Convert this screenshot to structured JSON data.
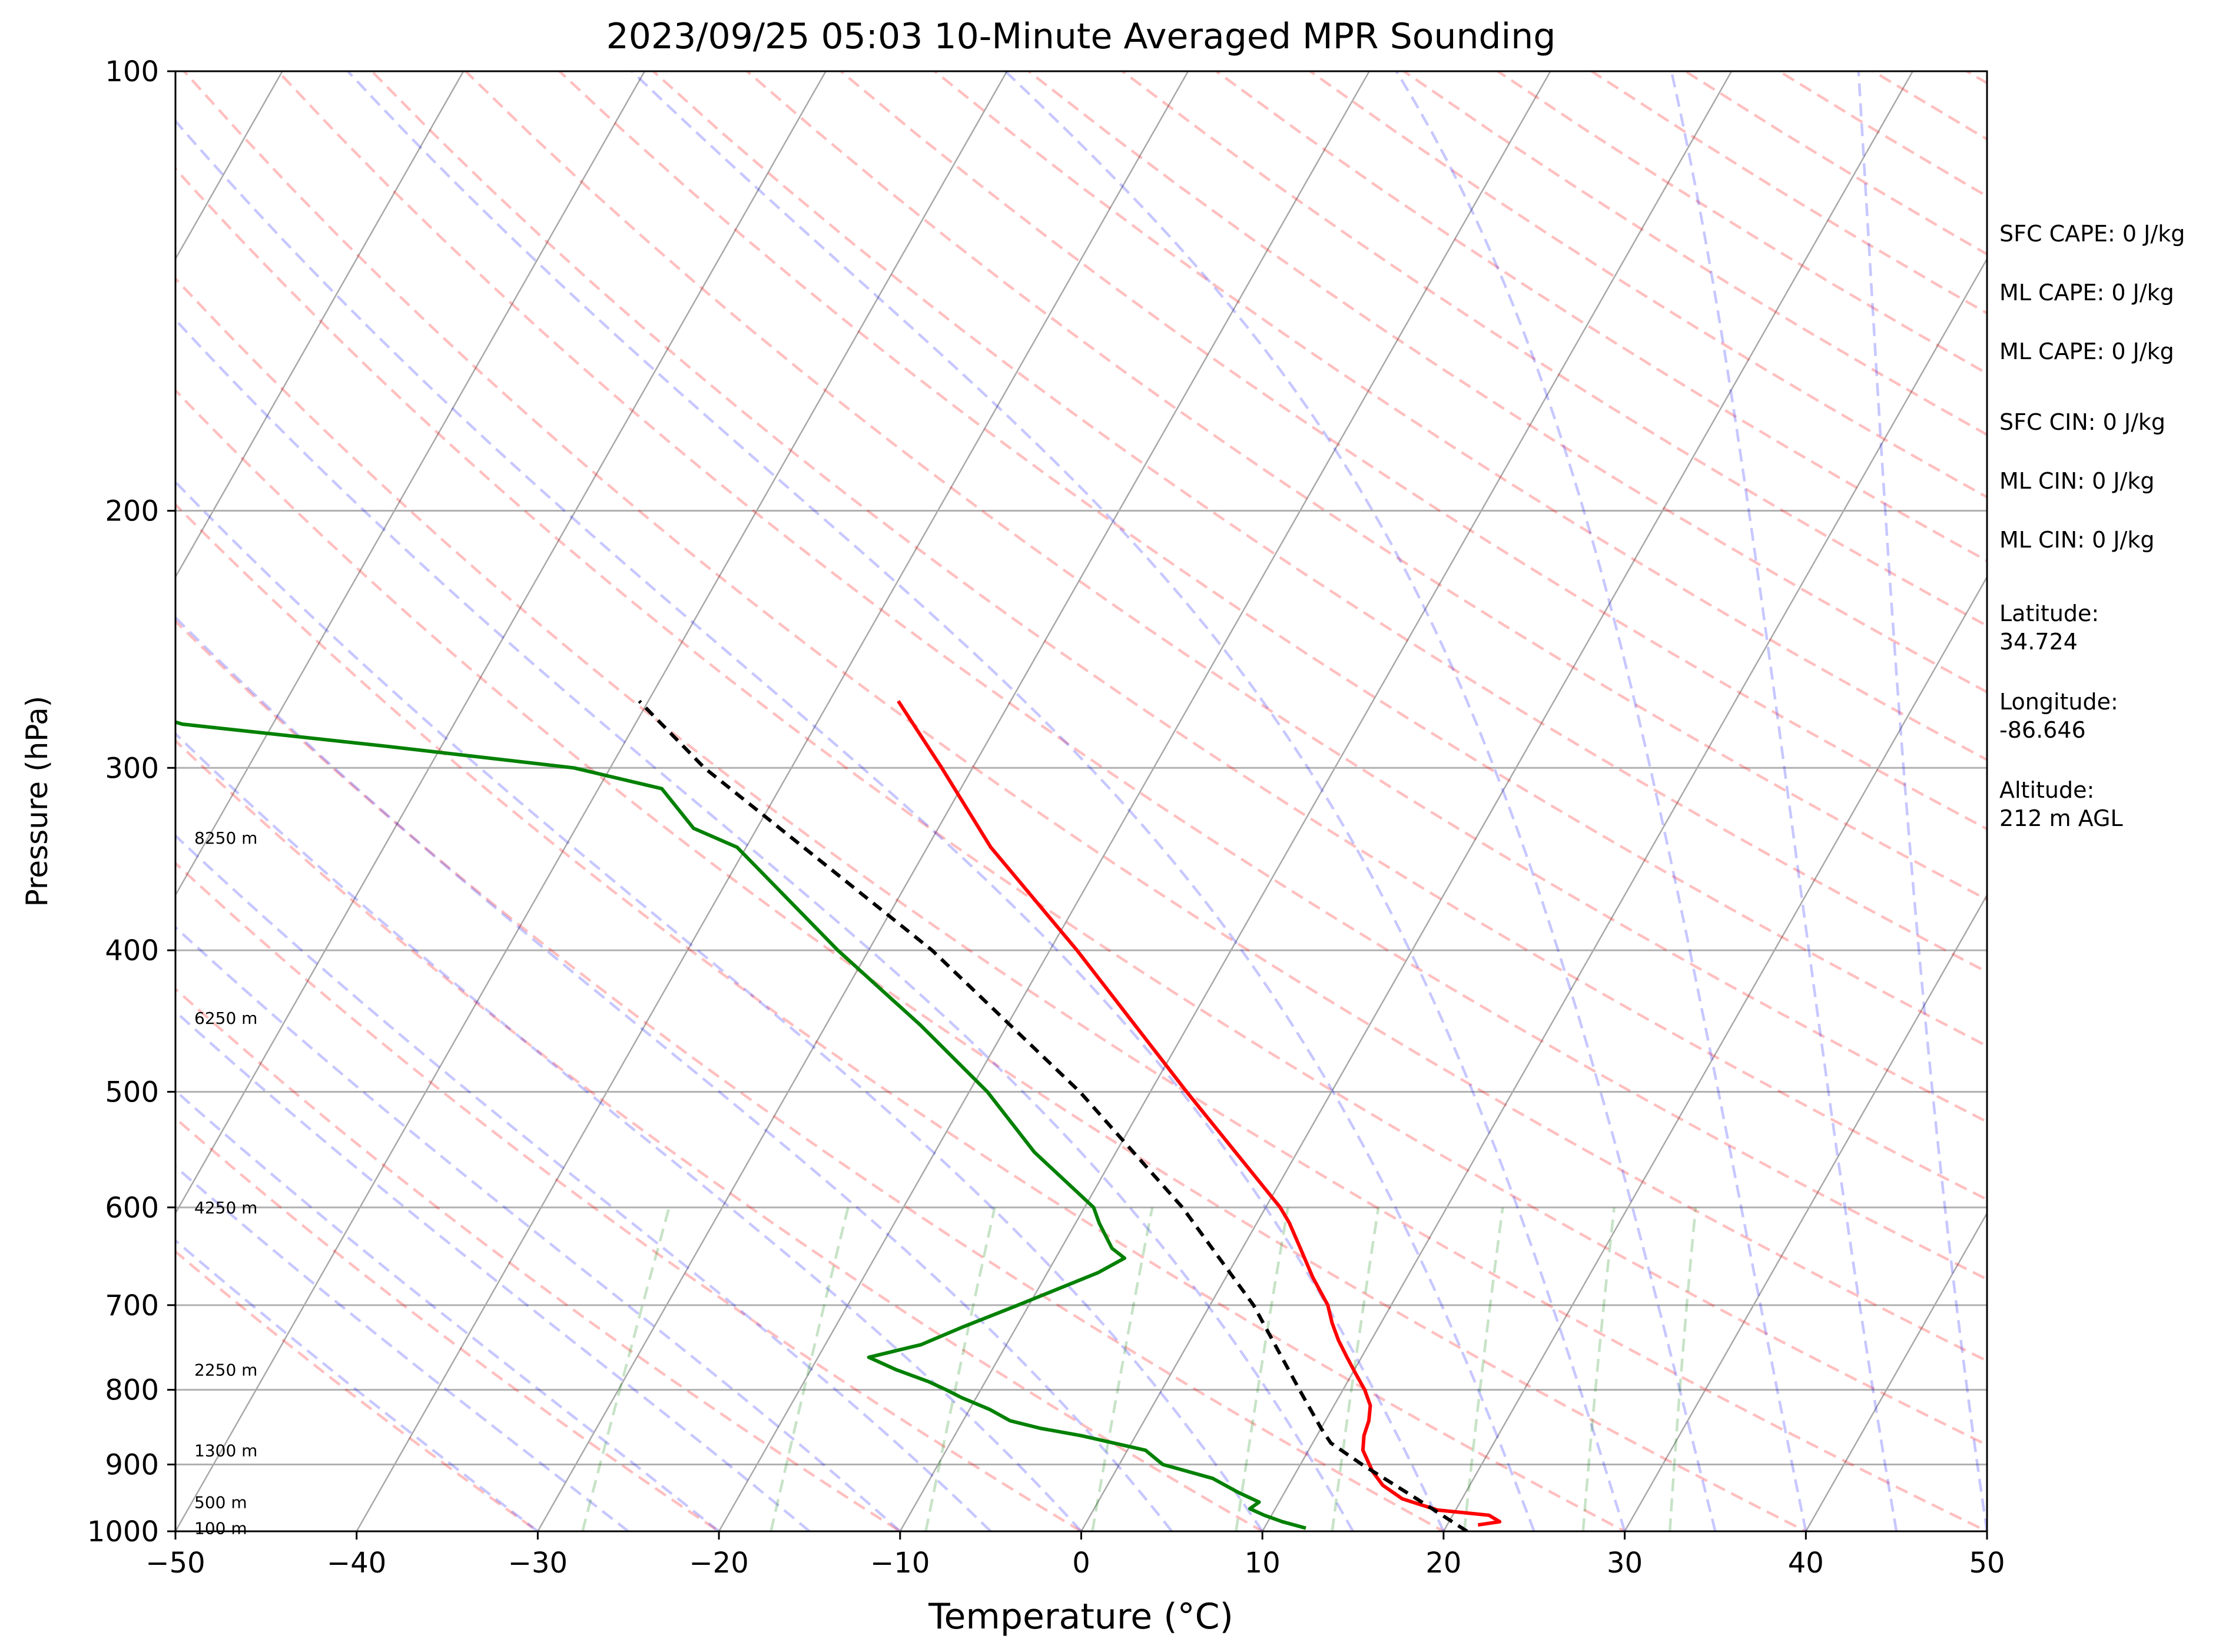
{
  "chart_data": {
    "type": "line",
    "subtype": "skew-t log-p",
    "title": "2023/09/25 05:03 10-Minute Averaged MPR Sounding",
    "xlabel": "Temperature (°C)",
    "ylabel": "Pressure (hPa)",
    "xlim": [
      -50,
      50
    ],
    "ylim": [
      1000,
      100
    ],
    "y_scale": "log",
    "x_ticks": [
      -50,
      -40,
      -30,
      -20,
      -10,
      0,
      10,
      20,
      30,
      40,
      50
    ],
    "x_tick_labels": [
      "−50",
      "−40",
      "−30",
      "−20",
      "−10",
      "0",
      "10",
      "20",
      "30",
      "40",
      "50"
    ],
    "y_ticks": [
      100,
      200,
      300,
      400,
      500,
      600,
      700,
      800,
      900,
      1000
    ],
    "y_tick_labels": [
      "100",
      "200",
      "300",
      "400",
      "500",
      "600",
      "700",
      "800",
      "900",
      "1000"
    ],
    "height_labels": [
      {
        "pressure": 335,
        "text": "8250 m"
      },
      {
        "pressure": 445,
        "text": "6250 m"
      },
      {
        "pressure": 600,
        "text": "4250 m"
      },
      {
        "pressure": 775,
        "text": "2250 m"
      },
      {
        "pressure": 880,
        "text": "1300 m"
      },
      {
        "pressure": 955,
        "text": "500 m"
      },
      {
        "pressure": 995,
        "text": "100 m"
      }
    ],
    "annotations": [
      "SFC CAPE: 0 J/kg",
      "ML CAPE: 0 J/kg",
      "ML CAPE: 0 J/kg",
      "SFC CIN: 0 J/kg",
      "ML CIN: 0 J/kg",
      "ML CIN: 0 J/kg",
      "Latitude:\n34.724",
      "Longitude:\n-86.646",
      "Altitude:\n212 m AGL"
    ],
    "series": [
      {
        "role": "temperature",
        "color": "#ff0000",
        "pressure": [
          990,
          985,
          975,
          967,
          950,
          930,
          910,
          880,
          860,
          840,
          820,
          800,
          780,
          760,
          740,
          720,
          700,
          670,
          640,
          615,
          600,
          500,
          400,
          340,
          300,
          270
        ],
        "temperature": [
          21.7,
          22.8,
          22.0,
          19.0,
          16.7,
          15.2,
          14.2,
          13.0,
          12.6,
          12.4,
          12.0,
          11.2,
          10.2,
          9.2,
          8.2,
          7.3,
          6.5,
          4.8,
          3.2,
          1.8,
          0.8,
          -8.0,
          -18.5,
          -26.5,
          -31.7,
          -36.2
        ]
      },
      {
        "role": "dewpoint",
        "color": "#008000",
        "pressure": [
          995,
          985,
          975,
          965,
          955,
          940,
          920,
          900,
          880,
          860,
          850,
          840,
          825,
          810,
          800,
          790,
          775,
          760,
          745,
          725,
          700,
          665,
          650,
          640,
          615,
          600,
          550,
          500,
          450,
          400,
          340,
          330,
          310,
          300,
          290,
          280,
          270
        ],
        "temperature": [
          12.3,
          10.8,
          9.6,
          8.6,
          8.9,
          7.4,
          5.6,
          2.4,
          1.0,
          -3.0,
          -5.5,
          -7.4,
          -8.9,
          -10.8,
          -11.9,
          -13.1,
          -15.3,
          -17.2,
          -14.7,
          -13.0,
          -10.6,
          -7.2,
          -6.2,
          -7.2,
          -8.7,
          -9.5,
          -14.5,
          -19.0,
          -24.8,
          -31.7,
          -40.5,
          -43.5,
          -46.5,
          -52.0,
          -63.0,
          -75.0,
          -80.0
        ]
      },
      {
        "role": "parcel",
        "color": "#000000",
        "pressure": [
          1000,
          950,
          900,
          870,
          850,
          800,
          700,
          600,
          500,
          400,
          300,
          270
        ],
        "temperature": [
          21.3,
          17.5,
          13.4,
          11.0,
          10.0,
          7.6,
          2.4,
          -4.6,
          -13.9,
          -26.5,
          -44.8,
          -50.5
        ]
      }
    ]
  }
}
